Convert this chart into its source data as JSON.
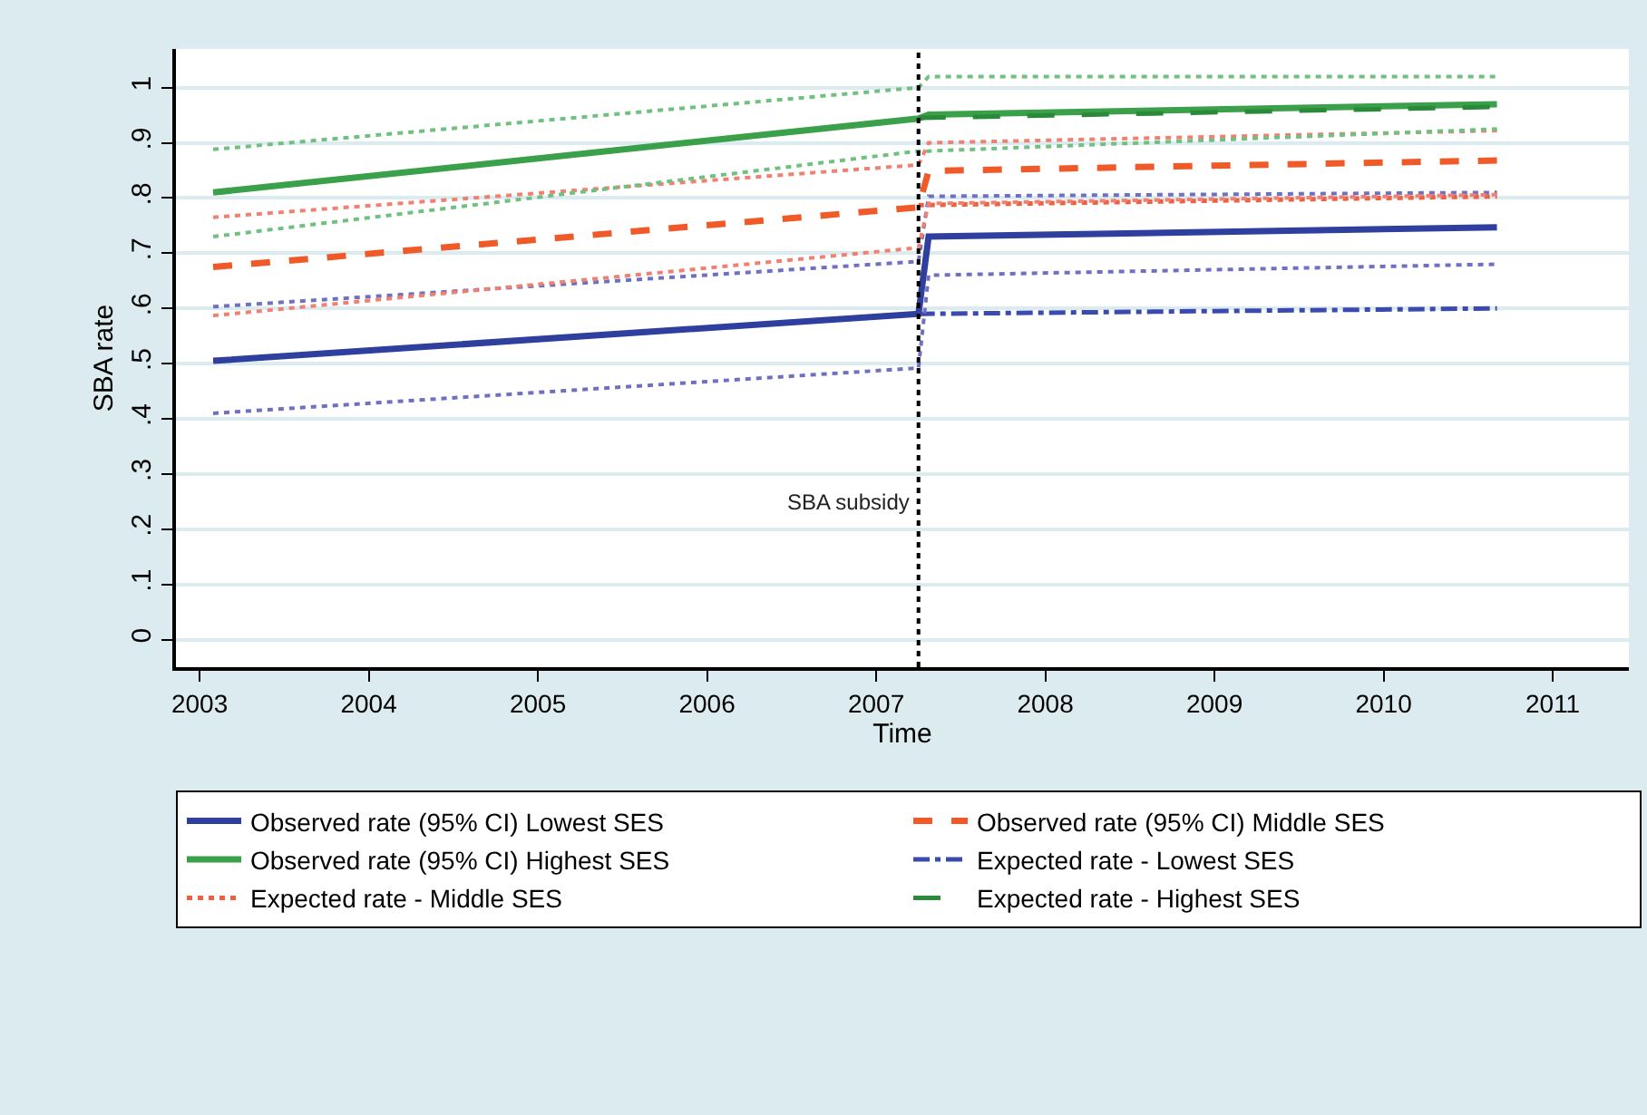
{
  "chart_data": {
    "type": "line",
    "xlabel": "Time",
    "ylabel": "SBA rate",
    "xlim": [
      2002.86,
      2011.45
    ],
    "xticks": [
      2003,
      2004,
      2005,
      2006,
      2007,
      2008,
      2009,
      2010,
      2011
    ],
    "ylim": [
      -0.05,
      1.07
    ],
    "yticks": [
      {
        "value": 0,
        "label": "0"
      },
      {
        "value": 0.1,
        "label": ".1"
      },
      {
        "value": 0.2,
        "label": ".2"
      },
      {
        "value": 0.3,
        "label": ".3"
      },
      {
        "value": 0.4,
        "label": ".4"
      },
      {
        "value": 0.5,
        "label": ".5"
      },
      {
        "value": 0.6,
        "label": ".6"
      },
      {
        "value": 0.7,
        "label": ".7"
      },
      {
        "value": 0.8,
        "label": ".8"
      },
      {
        "value": 0.9,
        "label": ".9"
      },
      {
        "value": 1,
        "label": "1"
      }
    ],
    "grid": "y",
    "legend": "bottom",
    "marker": "none",
    "ref_lines": [
      {
        "axis": "x",
        "value": 2007.25,
        "label": "SBA subsidy",
        "color": "#000000",
        "line_style": "dotted"
      }
    ],
    "series": [
      {
        "name": "Observed rate (95% CI) Lowest SES",
        "color": "#2e3f9e",
        "line_style": "solid",
        "x": [
          2003.08,
          2007.25,
          2007.31,
          2010.67
        ],
        "values": [
          0.505,
          0.59,
          0.73,
          0.747
        ]
      },
      {
        "name": "Observed rate (95% CI) Middle SES",
        "color": "#f05a28",
        "line_style": "dashed",
        "x": [
          2003.08,
          2007.25,
          2007.31,
          2010.67
        ],
        "values": [
          0.675,
          0.783,
          0.849,
          0.868
        ]
      },
      {
        "name": "Observed rate (95% CI) Highest SES",
        "color": "#3aa04a",
        "line_style": "solid",
        "x": [
          2003.08,
          2007.25,
          2007.31,
          2010.67
        ],
        "values": [
          0.81,
          0.944,
          0.951,
          0.97
        ]
      },
      {
        "name": "Expected rate - Lowest SES",
        "color": "#3a4aae",
        "line_style": "dashdot",
        "x": [
          2007.25,
          2010.67
        ],
        "values": [
          0.59,
          0.6
        ]
      },
      {
        "name": "Expected rate - Middle SES",
        "color": "#f06040",
        "line_style": "dot",
        "x": [
          2007.25,
          2010.67
        ],
        "values": [
          0.787,
          0.803
        ]
      },
      {
        "name": "Expected rate - Highest SES",
        "color": "#2a8a3a",
        "line_style": "longdash",
        "x": [
          2007.25,
          2010.67
        ],
        "values": [
          0.945,
          0.965
        ]
      },
      {
        "color": "#7070c0",
        "line_style": "dotted",
        "x": [
          2003.08,
          2007.25,
          2007.31,
          2010.67
        ],
        "values": [
          0.41,
          0.492,
          0.66,
          0.68
        ]
      },
      {
        "color": "#7070c0",
        "line_style": "dotted",
        "x": [
          2003.08,
          2007.25,
          2007.31,
          2010.67
        ],
        "values": [
          0.603,
          0.685,
          0.803,
          0.81
        ]
      },
      {
        "color": "#f08070",
        "line_style": "dotted",
        "x": [
          2003.08,
          2007.25,
          2007.31,
          2010.67
        ],
        "values": [
          0.587,
          0.71,
          0.79,
          0.806
        ]
      },
      {
        "color": "#f08070",
        "line_style": "dotted",
        "x": [
          2003.08,
          2007.25,
          2007.31,
          2010.67
        ],
        "values": [
          0.765,
          0.86,
          0.9,
          0.922
        ]
      },
      {
        "color": "#70c080",
        "line_style": "dotted",
        "x": [
          2003.08,
          2007.25,
          2007.31,
          2010.67
        ],
        "values": [
          0.73,
          0.885,
          0.885,
          0.925
        ]
      },
      {
        "color": "#70c080",
        "line_style": "dotted",
        "x": [
          2003.08,
          2007.25,
          2007.31,
          2010.67
        ],
        "values": [
          0.888,
          1.0,
          1.02,
          1.02
        ]
      }
    ]
  }
}
